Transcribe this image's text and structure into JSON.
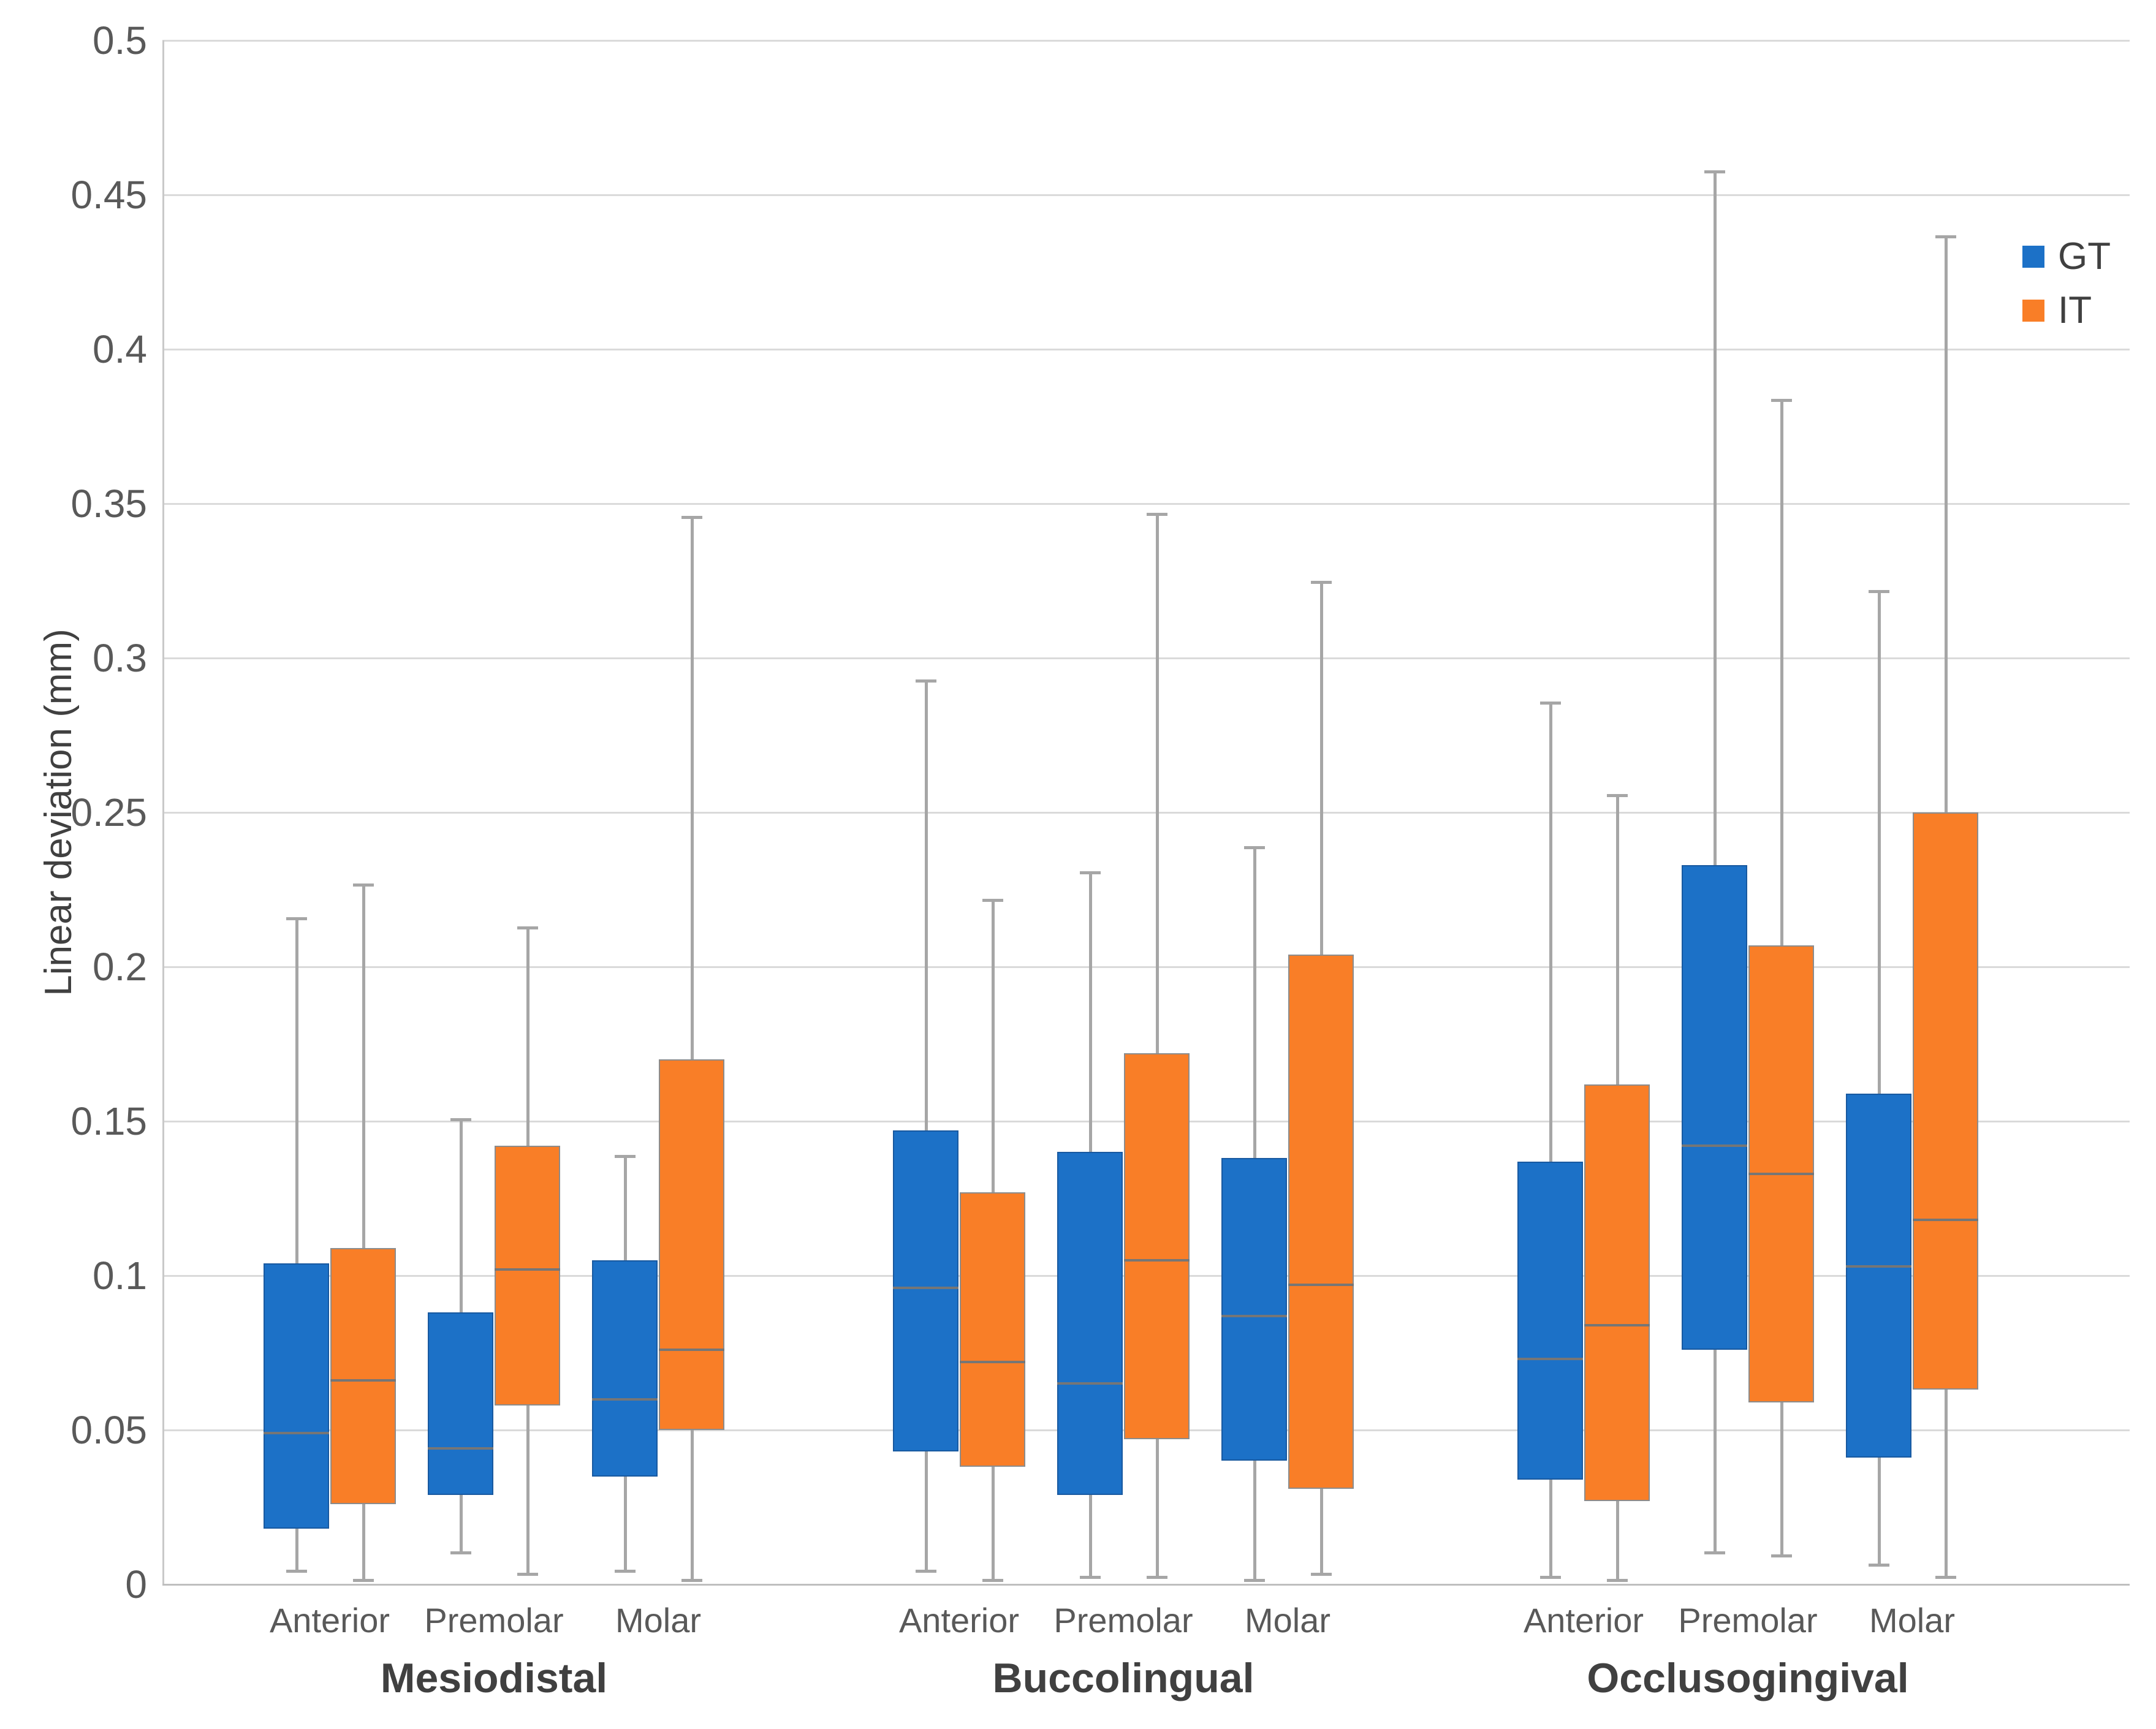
{
  "chart_data": {
    "type": "box",
    "title": "",
    "ylabel": "Linear deviation (mm)",
    "xlabel": "",
    "ylim": [
      0,
      0.5
    ],
    "ytick_step": 0.05,
    "ytick_labels": [
      "0",
      "0.05",
      "0.1",
      "0.15",
      "0.2",
      "0.25",
      "0.3",
      "0.35",
      "0.4",
      "0.45",
      "0.5"
    ],
    "grid": true,
    "legend_position": "top-right",
    "legend": [
      {
        "name": "GT",
        "color": "#1c71c7"
      },
      {
        "name": "IT",
        "color": "#f97e27"
      }
    ],
    "categories": [
      "Anterior",
      "Premolar",
      "Molar"
    ],
    "groups": [
      {
        "label": "Mesiodistal",
        "series": [
          {
            "name": "GT",
            "boxes": [
              {
                "category": "Anterior",
                "min": 0.004,
                "q1": 0.018,
                "median": 0.049,
                "q3": 0.104,
                "max": 0.216
              },
              {
                "category": "Premolar",
                "min": 0.01,
                "q1": 0.029,
                "median": 0.044,
                "q3": 0.088,
                "max": 0.151
              },
              {
                "category": "Molar",
                "min": 0.004,
                "q1": 0.035,
                "median": 0.06,
                "q3": 0.105,
                "max": 0.139
              }
            ]
          },
          {
            "name": "IT",
            "boxes": [
              {
                "category": "Anterior",
                "min": 0.001,
                "q1": 0.026,
                "median": 0.066,
                "q3": 0.109,
                "max": 0.227
              },
              {
                "category": "Premolar",
                "min": 0.003,
                "q1": 0.058,
                "median": 0.102,
                "q3": 0.142,
                "max": 0.213
              },
              {
                "category": "Molar",
                "min": 0.001,
                "q1": 0.05,
                "median": 0.076,
                "q3": 0.17,
                "max": 0.346
              }
            ]
          }
        ]
      },
      {
        "label": "Buccolingual",
        "series": [
          {
            "name": "GT",
            "boxes": [
              {
                "category": "Anterior",
                "min": 0.004,
                "q1": 0.043,
                "median": 0.096,
                "q3": 0.147,
                "max": 0.293
              },
              {
                "category": "Premolar",
                "min": 0.002,
                "q1": 0.029,
                "median": 0.065,
                "q3": 0.14,
                "max": 0.231
              },
              {
                "category": "Molar",
                "min": 0.001,
                "q1": 0.04,
                "median": 0.087,
                "q3": 0.138,
                "max": 0.239
              }
            ]
          },
          {
            "name": "IT",
            "boxes": [
              {
                "category": "Anterior",
                "min": 0.001,
                "q1": 0.038,
                "median": 0.072,
                "q3": 0.127,
                "max": 0.222
              },
              {
                "category": "Premolar",
                "min": 0.002,
                "q1": 0.047,
                "median": 0.105,
                "q3": 0.172,
                "max": 0.347
              },
              {
                "category": "Molar",
                "min": 0.003,
                "q1": 0.031,
                "median": 0.097,
                "q3": 0.204,
                "max": 0.325
              }
            ]
          }
        ]
      },
      {
        "label": "Occlusogingival",
        "series": [
          {
            "name": "GT",
            "boxes": [
              {
                "category": "Anterior",
                "min": 0.002,
                "q1": 0.034,
                "median": 0.073,
                "q3": 0.137,
                "max": 0.286
              },
              {
                "category": "Premolar",
                "min": 0.01,
                "q1": 0.076,
                "median": 0.142,
                "q3": 0.233,
                "max": 0.458
              },
              {
                "category": "Molar",
                "min": 0.006,
                "q1": 0.041,
                "median": 0.103,
                "q3": 0.159,
                "max": 0.322
              }
            ]
          },
          {
            "name": "IT",
            "boxes": [
              {
                "category": "Anterior",
                "min": 0.001,
                "q1": 0.027,
                "median": 0.084,
                "q3": 0.162,
                "max": 0.256
              },
              {
                "category": "Premolar",
                "min": 0.009,
                "q1": 0.059,
                "median": 0.133,
                "q3": 0.207,
                "max": 0.384
              },
              {
                "category": "Molar",
                "min": 0.002,
                "q1": 0.063,
                "median": 0.118,
                "q3": 0.25,
                "max": 0.437
              }
            ]
          }
        ]
      }
    ]
  },
  "colors": {
    "gt_fill": "#1c71c7",
    "gt_border": "#1859a0",
    "it_fill": "#f97e27",
    "it_border": "#8c8c8c",
    "median": "#767676",
    "whisker": "#a6a6a6",
    "gridline": "#dadada",
    "axis": "#bfbfbf",
    "tick_text": "#595959",
    "title_text": "#404040"
  }
}
